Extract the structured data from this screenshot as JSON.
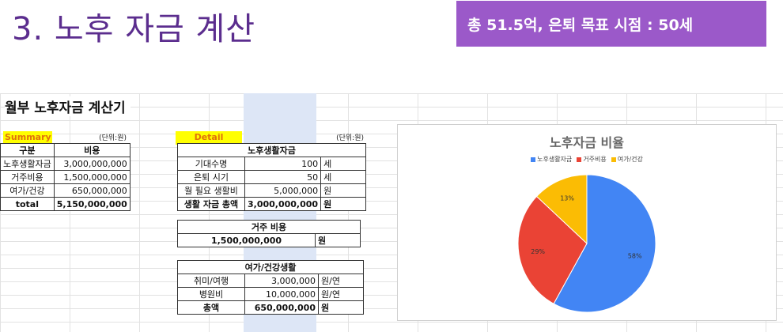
{
  "slide_title": "3. 노후 자금 계산",
  "badge_text": "총 51.5억, 은퇴 목표 시점 : 50세",
  "sheet_title": "월부 노후자금 계산기",
  "summary": {
    "label": "Summary",
    "unit": "(단위:원)",
    "headers": [
      "구분",
      "비용"
    ],
    "rows": [
      [
        "노후생활자금",
        "3,000,000,000"
      ],
      [
        "거주비용",
        "1,500,000,000"
      ],
      [
        "여가/건강",
        "650,000,000"
      ],
      [
        "total",
        "5,150,000,000"
      ]
    ]
  },
  "detail": {
    "label": "Detail",
    "unit": "(단위:원)",
    "living": {
      "header": "노후생활자금",
      "rows": [
        [
          "기대수명",
          "100",
          "세"
        ],
        [
          "은퇴 시기",
          "50",
          "세"
        ],
        [
          "월 필요 생활비",
          "5,000,000",
          "원"
        ],
        [
          "생활 자금 총액",
          "3,000,000,000",
          "원"
        ]
      ]
    },
    "housing": {
      "header": "거주 비용",
      "value": "1,500,000,000",
      "unit": "원"
    },
    "leisure": {
      "header": "여가/건강생활",
      "rows": [
        [
          "취미/여행",
          "3,000,000",
          "원/연"
        ],
        [
          "병원비",
          "10,000,000",
          "원/연"
        ],
        [
          "총액",
          "650,000,000",
          "원"
        ]
      ]
    }
  },
  "chart_data": {
    "type": "pie",
    "title": "노후자금 비율",
    "legend_position": "top",
    "slices": [
      {
        "name": "노후생활자금",
        "value": 58,
        "label": "58%",
        "color": "#4285f4"
      },
      {
        "name": "거주비용",
        "value": 29,
        "label": "29%",
        "color": "#ea4335"
      },
      {
        "name": "여가/건강",
        "value": 13,
        "label": "13%",
        "color": "#fbbc04"
      }
    ]
  },
  "colors": {
    "accent": "#9b59c9",
    "title": "#5b2d8e",
    "highlight_column": "#dde6f6",
    "label_bg": "#ffff00"
  }
}
